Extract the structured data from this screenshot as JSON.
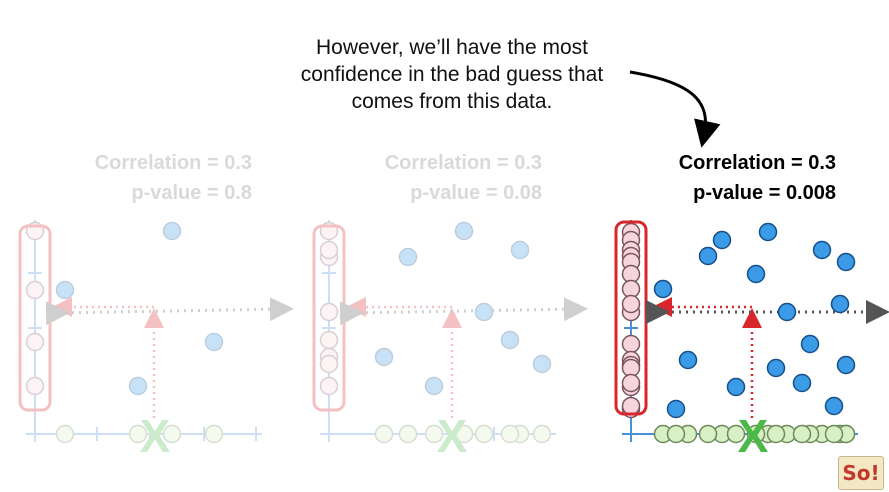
{
  "caption": {
    "lines": [
      "However, we’ll have the most",
      "confidence in the bad guess that",
      "comes from this data."
    ]
  },
  "panels": [
    {
      "correlation": "Correlation = 0.3",
      "pvalue": "p-value = 0.8",
      "state": "faded"
    },
    {
      "correlation": "Correlation = 0.3",
      "pvalue": "p-value = 0.08",
      "state": "faded"
    },
    {
      "correlation": "Correlation = 0.3",
      "pvalue": "p-value = 0.008",
      "state": "active"
    }
  ],
  "marker": "X",
  "logo": "So!",
  "colors": {
    "point": "#3b9be6",
    "point_stroke": "#174f8c",
    "highlight": "#d9262c",
    "axis": "#4a90d9",
    "x_marker": "#4cb848",
    "x_points": "#d8f0c4",
    "y_points": "#f6d5dd",
    "guide": "#555555"
  }
}
